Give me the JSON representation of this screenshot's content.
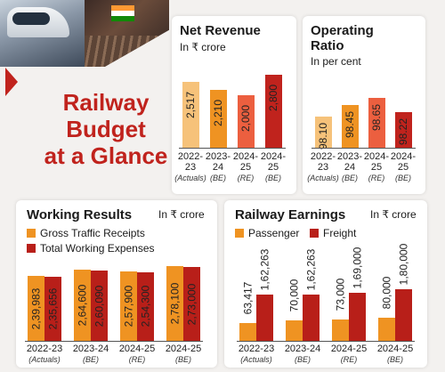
{
  "hero": {
    "line1": "Railway",
    "line2": "Budget",
    "line3": "at a Glance"
  },
  "colors": {
    "light_orange": "#f6c27a",
    "orange": "#ef9322",
    "salmon": "#ec5f3f",
    "red": "#c0231d",
    "dark_red": "#b81f19"
  },
  "chart_data": [
    {
      "type": "bar",
      "title": "Net Revenue",
      "subtitle": "In ₹ crore",
      "categories": [
        "2022-23",
        "2023-24",
        "2024-25 RE",
        "2024-25"
      ],
      "category_lines": [
        [
          "2022-",
          "23",
          "(Actuals)"
        ],
        [
          "2023-",
          "24",
          "(BE)"
        ],
        [
          "2024-",
          "25",
          "(RE)"
        ],
        [
          "2024-",
          "25",
          "(BE)"
        ]
      ],
      "values": [
        2517,
        2210,
        2000,
        2800
      ],
      "value_labels": [
        "2,517",
        "2,210",
        "2,000",
        "2,800"
      ],
      "bar_colors": [
        "#f6c27a",
        "#ef9322",
        "#ec5f3f",
        "#c0231d"
      ],
      "ylim": [
        0,
        3000
      ]
    },
    {
      "type": "bar",
      "title_lines": [
        "Operating",
        "Ratio"
      ],
      "subtitle": "In per cent",
      "categories": [
        "2022-23",
        "2023-24",
        "2024-25 RE",
        "2024-25"
      ],
      "category_lines": [
        [
          "2022-",
          "23",
          "(Actuals)"
        ],
        [
          "2023-",
          "24",
          "(BE)"
        ],
        [
          "2024-",
          "25",
          "(RE)"
        ],
        [
          "2024-",
          "25",
          "(BE)"
        ]
      ],
      "values": [
        98.1,
        98.45,
        98.65,
        98.22
      ],
      "value_labels": [
        "98.10",
        "98.45",
        "98.65",
        "98.22"
      ],
      "bar_colors": [
        "#f6c27a",
        "#ef9322",
        "#ec5f3f",
        "#c0231d"
      ],
      "ylim": [
        97.2,
        98.8
      ]
    },
    {
      "type": "bar",
      "title": "Working Results",
      "subtitle": "In ₹ crore",
      "legend": [
        "Gross Traffic Receipts",
        "Total Working Expenses"
      ],
      "categories": [
        "2022-23",
        "2023-24",
        "2024-25 RE",
        "2024-25"
      ],
      "category_lines": [
        [
          "2022-23",
          "(Actuals)"
        ],
        [
          "2023-24",
          "(BE)"
        ],
        [
          "2024-25",
          "(RE)"
        ],
        [
          "2024-25",
          "(BE)"
        ]
      ],
      "series": [
        {
          "name": "Gross Traffic Receipts",
          "values": [
            239983,
            264600,
            257900,
            278100
          ],
          "labels": [
            "2,39,983",
            "2,64,600",
            "2,57,900",
            "2,78,100"
          ],
          "color": "#ef9322"
        },
        {
          "name": "Total Working Expenses",
          "values": [
            235656,
            260090,
            254300,
            273000
          ],
          "labels": [
            "2,35,656",
            "2,60,090",
            "2,54,300",
            "2,73,000"
          ],
          "color": "#b81f19"
        }
      ],
      "ylim": [
        0,
        290000
      ]
    },
    {
      "type": "bar",
      "title": "Railway Earnings",
      "subtitle": "In ₹ crore",
      "legend": [
        "Passenger",
        "Freight"
      ],
      "categories": [
        "2022-23",
        "2023-24",
        "2024-25 RE",
        "2024-25"
      ],
      "category_lines": [
        [
          "2022-23",
          "(Actuals)"
        ],
        [
          "2023-24",
          "(BE)"
        ],
        [
          "2024-25",
          "(RE)"
        ],
        [
          "2024-25",
          "(BE)"
        ]
      ],
      "series": [
        {
          "name": "Passenger",
          "values": [
            63417,
            70000,
            73000,
            80000
          ],
          "labels": [
            "63,417",
            "70,000",
            "73,000",
            "80,000"
          ],
          "color": "#ef9322"
        },
        {
          "name": "Freight",
          "values": [
            162263,
            162263,
            169000,
            180000
          ],
          "labels": [
            "1,62,263",
            "1,62,263",
            "1,69,000",
            "1,80,000"
          ],
          "color": "#b81f19"
        }
      ],
      "ylim": [
        0,
        180000
      ]
    }
  ]
}
